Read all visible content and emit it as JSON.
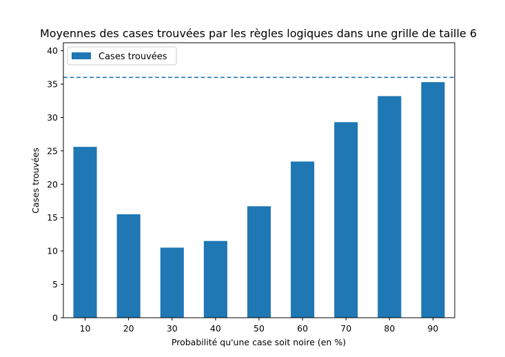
{
  "chart_data": {
    "type": "bar",
    "title": "Moyennes des cases trouvées par les règles logiques dans une grille de taille 6",
    "xlabel": "Probabilité qu'une case soit noire (en %)",
    "ylabel": "Cases trouvées",
    "categories": [
      "10",
      "20",
      "30",
      "40",
      "50",
      "60",
      "70",
      "80",
      "90"
    ],
    "series": [
      {
        "name": "Cases trouvées",
        "color": "#1f77b4",
        "values": [
          25.6,
          15.5,
          10.5,
          11.5,
          16.7,
          23.4,
          29.3,
          33.2,
          35.3
        ]
      }
    ],
    "reference_line": {
      "value": 36,
      "style": "dashed",
      "color": "#1f77b4"
    },
    "ylim": [
      0,
      41.2
    ],
    "yticks": [
      0,
      5,
      10,
      15,
      20,
      25,
      30,
      35,
      40
    ],
    "legend": {
      "position": "top-left"
    },
    "grid": false
  }
}
